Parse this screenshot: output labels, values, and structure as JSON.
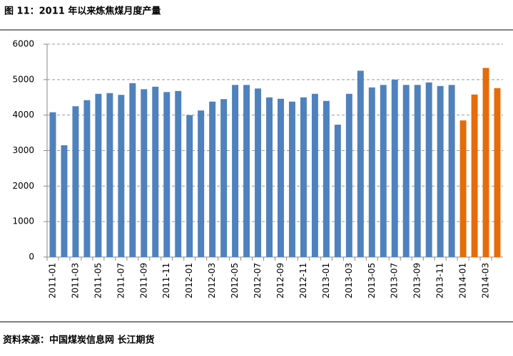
{
  "chart_data": {
    "type": "bar",
    "title": "图 11：2011 年以来炼焦煤月度产量",
    "source": "资料来源：中国煤炭信息网 长江期货",
    "categories": [
      "2011-01",
      null,
      "2011-03",
      null,
      "2011-05",
      null,
      "2011-07",
      null,
      "2011-09",
      null,
      "2011-11",
      null,
      "2012-01",
      null,
      "2012-03",
      null,
      "2012-05",
      null,
      "2012-07",
      null,
      "2012-09",
      null,
      "2012-11",
      null,
      "2013-01",
      null,
      "2013-03",
      null,
      "2013-05",
      null,
      "2013-07",
      null,
      "2013-09",
      null,
      "2013-11",
      null,
      "2014-01",
      null,
      "2014-03",
      null
    ],
    "values": [
      4080,
      3150,
      4250,
      4420,
      4600,
      4620,
      4570,
      4900,
      4730,
      4800,
      4650,
      4680,
      4000,
      4130,
      4380,
      4450,
      4850,
      4850,
      4750,
      4500,
      4460,
      4380,
      4500,
      4600,
      4400,
      3730,
      4600,
      5250,
      4780,
      4850,
      5000,
      4850,
      4850,
      4920,
      4820,
      4850,
      3850,
      4580,
      5330,
      4760
    ],
    "colors": [
      "#4f81bd",
      "#4f81bd",
      "#4f81bd",
      "#4f81bd",
      "#4f81bd",
      "#4f81bd",
      "#4f81bd",
      "#4f81bd",
      "#4f81bd",
      "#4f81bd",
      "#4f81bd",
      "#4f81bd",
      "#4f81bd",
      "#4f81bd",
      "#4f81bd",
      "#4f81bd",
      "#4f81bd",
      "#4f81bd",
      "#4f81bd",
      "#4f81bd",
      "#4f81bd",
      "#4f81bd",
      "#4f81bd",
      "#4f81bd",
      "#4f81bd",
      "#4f81bd",
      "#4f81bd",
      "#4f81bd",
      "#4f81bd",
      "#4f81bd",
      "#4f81bd",
      "#4f81bd",
      "#4f81bd",
      "#4f81bd",
      "#4f81bd",
      "#4f81bd",
      "#e46c0a",
      "#e46c0a",
      "#e46c0a",
      "#e46c0a"
    ],
    "ylim": [
      0,
      6000
    ],
    "yticks": [
      0,
      1000,
      2000,
      3000,
      4000,
      5000,
      6000
    ],
    "grid": true
  }
}
